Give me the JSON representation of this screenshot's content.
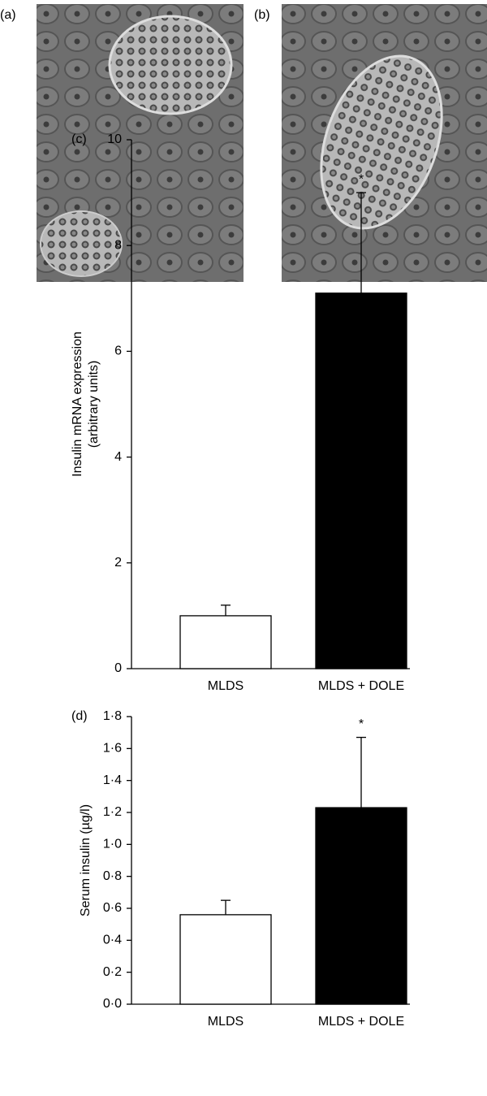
{
  "images": [
    {
      "label": "(a)"
    },
    {
      "label": "(b)"
    }
  ],
  "chart_data": [
    {
      "type": "bar",
      "panel_label": "(c)",
      "ylabel": [
        "Insulin mRNA expression",
        "(arbitrary units)"
      ],
      "categories": [
        "MLDS",
        "MLDS + DOLE"
      ],
      "values": [
        1.0,
        7.1
      ],
      "errors": [
        0.2,
        1.9
      ],
      "value_annotations": [
        null,
        "*"
      ],
      "colors": [
        "#ffffff",
        "#000000"
      ],
      "ylim": [
        0,
        10
      ],
      "yticks": [
        0,
        2,
        4,
        6,
        8,
        10
      ]
    },
    {
      "type": "bar",
      "panel_label": "(d)",
      "ylabel": [
        "Serum insulin (µg/l)"
      ],
      "categories": [
        "MLDS",
        "MLDS + DOLE"
      ],
      "values": [
        0.56,
        1.23
      ],
      "errors": [
        0.09,
        0.44
      ],
      "value_annotations": [
        null,
        "*"
      ],
      "colors": [
        "#ffffff",
        "#000000"
      ],
      "ylim": [
        0,
        1.8
      ],
      "yticks": [
        {
          "value": 0,
          "label": "0·0"
        },
        {
          "value": 0.2,
          "label": "0·2"
        },
        {
          "value": 0.4,
          "label": "0·4"
        },
        {
          "value": 0.6,
          "label": "0·6"
        },
        {
          "value": 0.8,
          "label": "0·8"
        },
        {
          "value": 1.0,
          "label": "1·0"
        },
        {
          "value": 1.2,
          "label": "1·2"
        },
        {
          "value": 1.4,
          "label": "1·4"
        },
        {
          "value": 1.6,
          "label": "1·6"
        },
        {
          "value": 1.8,
          "label": "1·8"
        }
      ]
    }
  ]
}
